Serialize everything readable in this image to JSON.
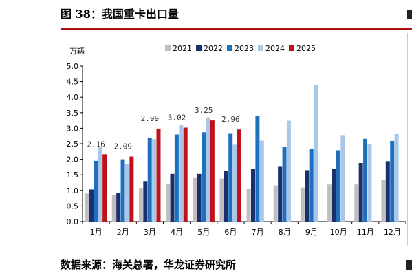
{
  "figure_title": "图 38：我国重卡出口量",
  "source_note": "数据来源：海关总署，华龙证券研究所",
  "colors": {
    "rule": "#b01010",
    "s2021": "#bfbfbf",
    "s2022": "#1a2f6b",
    "s2023": "#1f6fbf",
    "s2024": "#a9c7e8",
    "s2025": "#c0101a"
  },
  "chart_data": {
    "type": "bar",
    "title": "",
    "ylabel": "万辆",
    "xlabel": "",
    "ylim": [
      0,
      5.0
    ],
    "yticks": [
      "0.0",
      "0.5",
      "1.0",
      "1.5",
      "2.0",
      "2.5",
      "3.0",
      "3.5",
      "4.0",
      "4.5",
      "5.0"
    ],
    "legend_position": "top",
    "categories": [
      "1月",
      "2月",
      "3月",
      "4月",
      "5月",
      "6月",
      "7月",
      "8月",
      "9月",
      "10月",
      "11月",
      "12月"
    ],
    "series": [
      {
        "name": "2021",
        "color": "#bfbfbf",
        "values": [
          0.9,
          0.86,
          1.08,
          1.22,
          1.4,
          1.38,
          1.04,
          1.16,
          1.09,
          1.19,
          1.19,
          1.35
        ]
      },
      {
        "name": "2022",
        "color": "#1a2f6b",
        "values": [
          1.03,
          0.92,
          1.3,
          1.53,
          1.53,
          1.63,
          1.69,
          1.76,
          1.65,
          1.7,
          1.88,
          1.94
        ]
      },
      {
        "name": "2023",
        "color": "#1f6fbf",
        "values": [
          1.95,
          2.0,
          2.7,
          2.8,
          2.87,
          2.82,
          3.4,
          2.41,
          2.33,
          2.29,
          2.66,
          2.59
        ]
      },
      {
        "name": "2024",
        "color": "#a9c7e8",
        "values": [
          2.4,
          1.85,
          2.65,
          3.1,
          3.35,
          2.47,
          2.6,
          3.24,
          4.38,
          2.78,
          2.5,
          2.81
        ]
      },
      {
        "name": "2025",
        "color": "#c0101a",
        "values": [
          2.16,
          2.09,
          2.99,
          3.02,
          3.25,
          2.96,
          null,
          null,
          null,
          null,
          null,
          null
        ]
      }
    ],
    "data_labels": {
      "series": "2025",
      "values": [
        "2.16",
        "2.09",
        "2.99",
        "3.02",
        "3.25",
        "2.96"
      ]
    }
  }
}
